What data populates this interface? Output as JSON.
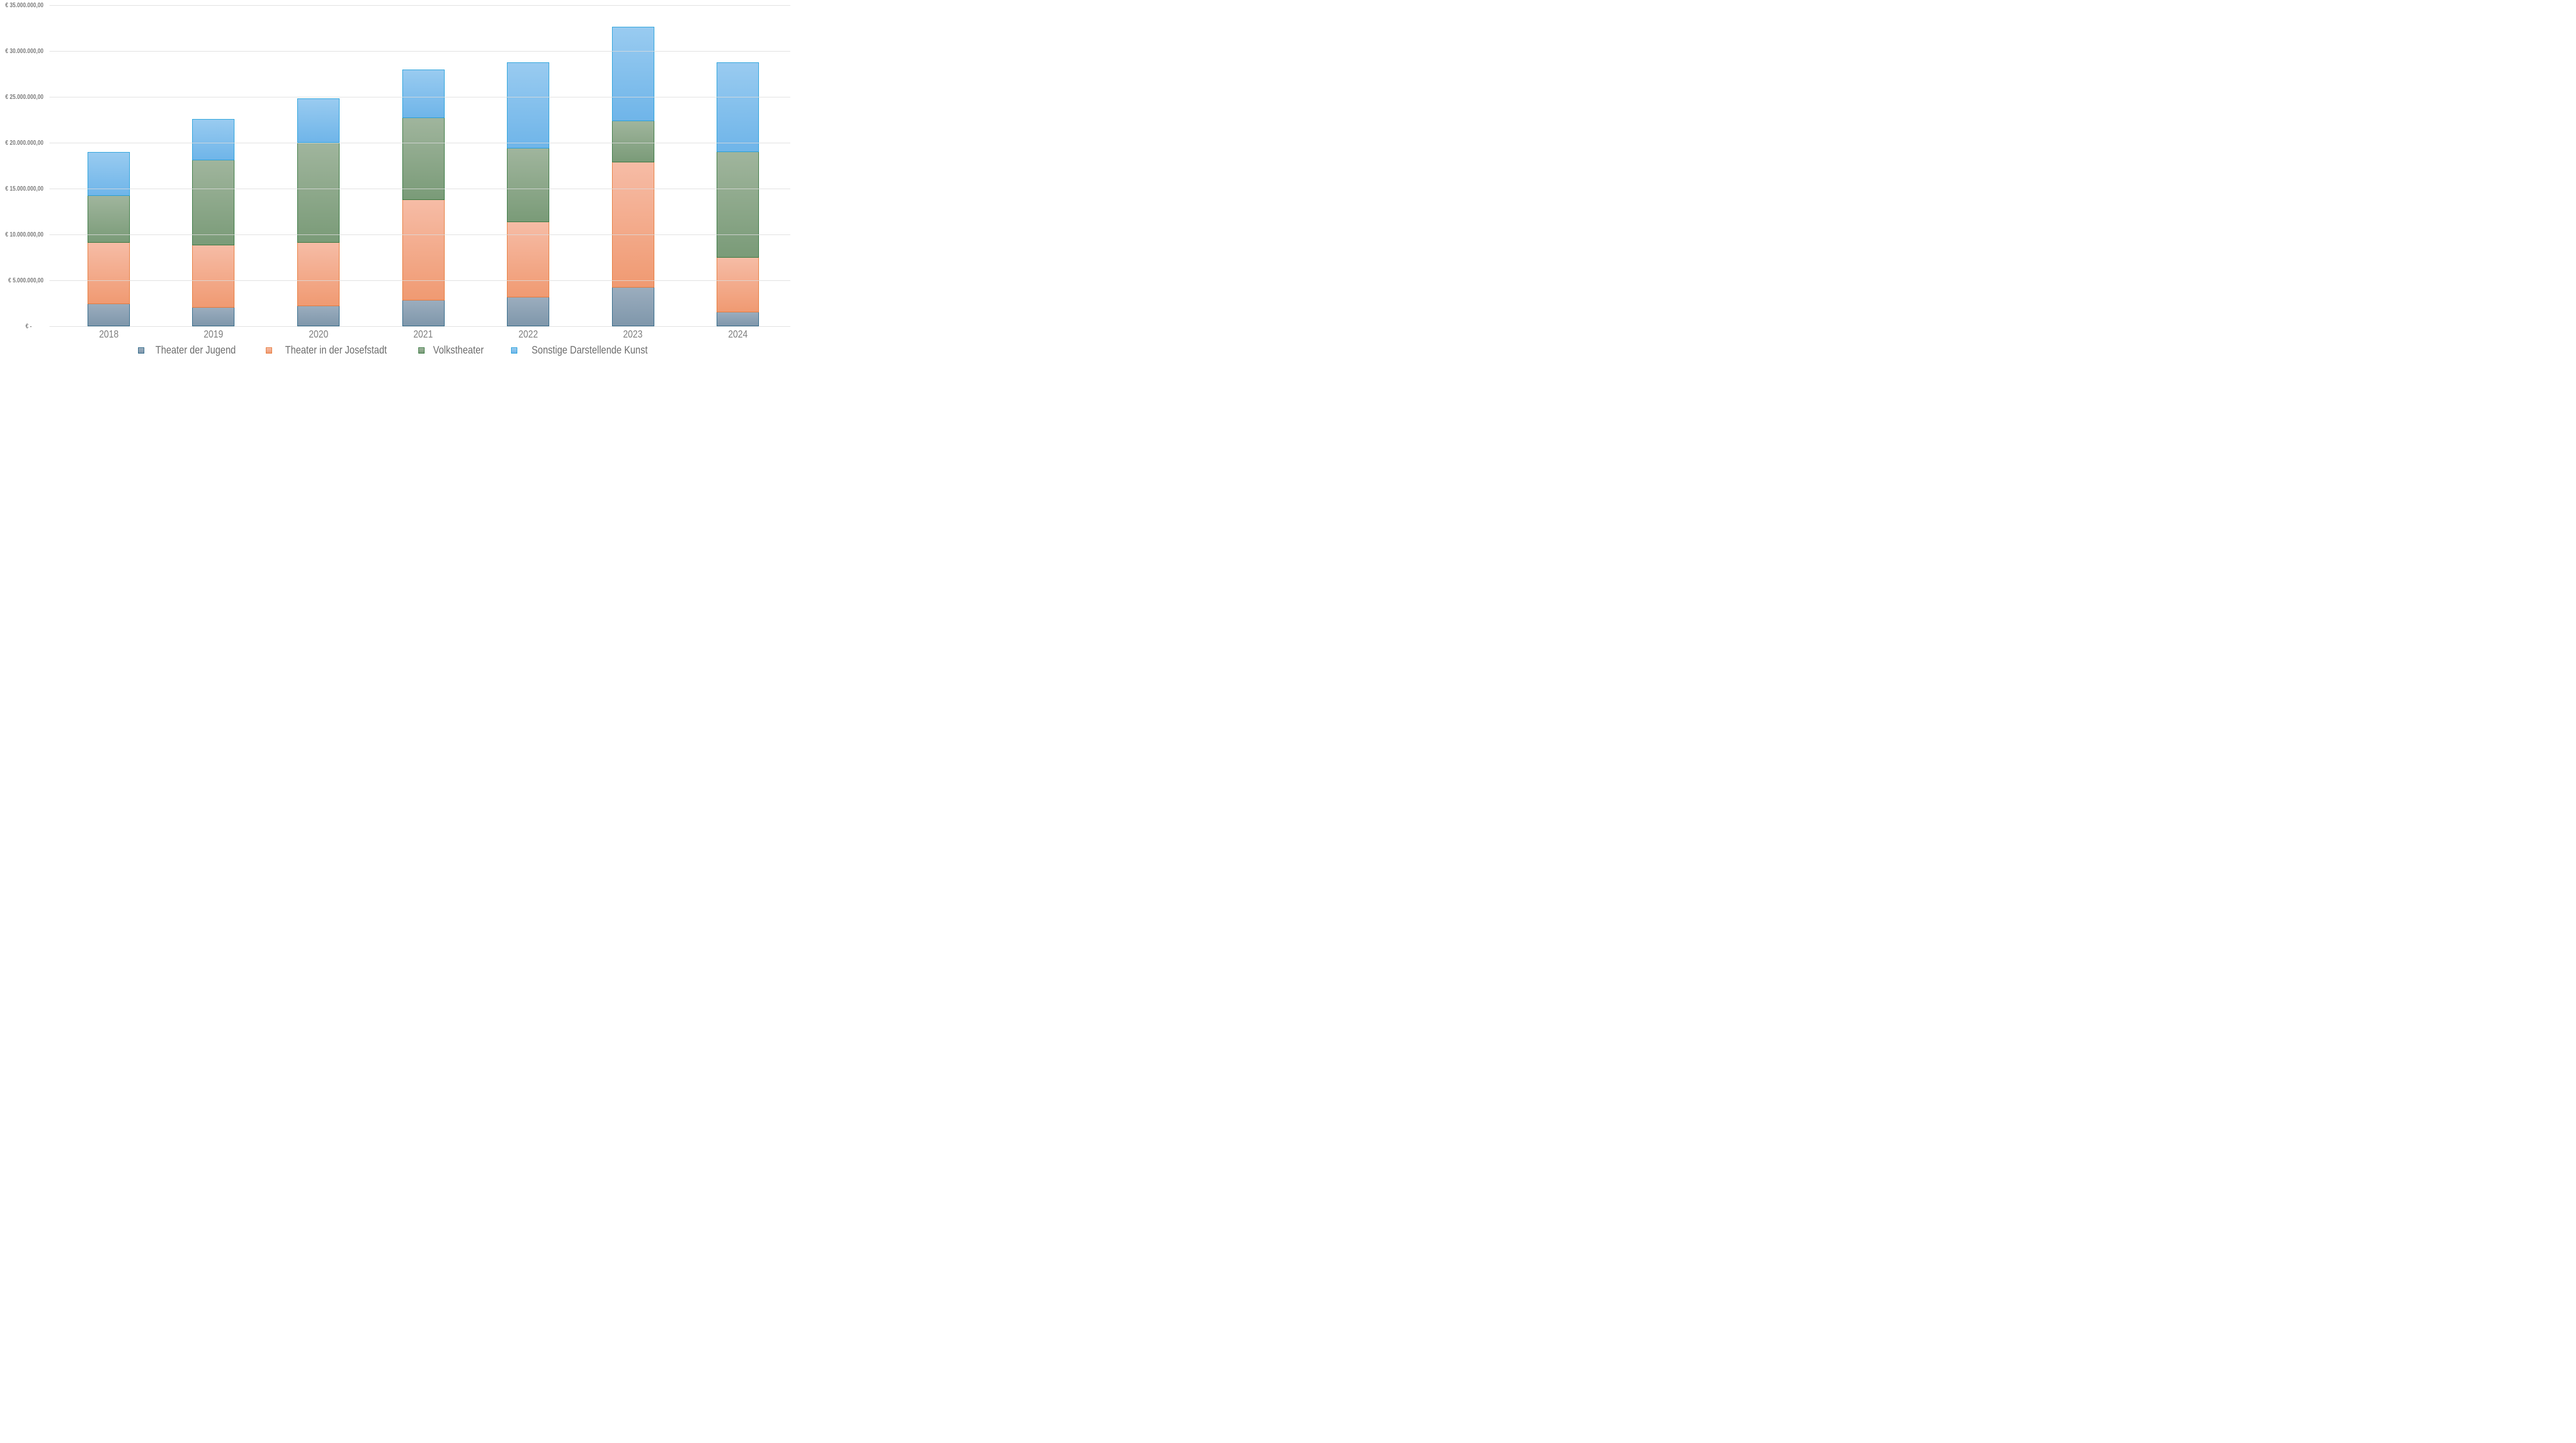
{
  "chart_data": {
    "type": "bar",
    "stacked": true,
    "title": "",
    "xlabel": "",
    "ylabel": "",
    "categories": [
      "2018",
      "2019",
      "2020",
      "2021",
      "2022",
      "2023",
      "2024"
    ],
    "series": [
      {
        "name": "Theater der Jugend",
        "values": [
          2400000,
          2000000,
          2200000,
          2800000,
          3150000,
          4200000,
          1500000
        ],
        "fill_top": "#9badbe",
        "fill_bottom": "#7f97ab",
        "border": "#205e80"
      },
      {
        "name": "Theater in der Josefstadt",
        "values": [
          6700000,
          6800000,
          6900000,
          10950000,
          8200000,
          13650000,
          6000000
        ],
        "fill_top": "#f6bca6",
        "fill_bottom": "#f09a72",
        "border": "#e4732e"
      },
      {
        "name": "Volkstheater",
        "values": [
          5100000,
          9300000,
          10900000,
          8950000,
          8050000,
          4500000,
          11500000
        ],
        "fill_top": "#a0b59d",
        "fill_bottom": "#7a9b78",
        "border": "#2a7034"
      },
      {
        "name": "Sonstige Darstellende Kunst",
        "values": [
          4800000,
          4500000,
          4850000,
          5300000,
          9350000,
          10300000,
          9750000
        ],
        "fill_top": "#99cbf0",
        "fill_bottom": "#6fb5e9",
        "border": "#189cd8"
      }
    ],
    "totals": [
      19000000,
      22600000,
      24850000,
      28000000,
      28750000,
      32650000,
      28750000
    ],
    "ylim": [
      0,
      35000000
    ],
    "y_tick_interval": 5000000,
    "y_tick_labels_bottom_up": [
      "€ -",
      "€ 5.000.000,00",
      "€ 10.000.000,00",
      "€ 15.000.000,00",
      "€ 20.000.000,00",
      "€ 25.000.000,00",
      "€ 30.000.000,00",
      "€ 35.000.000,00"
    ],
    "grid": true,
    "legend_position": "bottom",
    "gridline_color": "#dcdcdc",
    "axis_text_color": "#7f7f7f",
    "legend_text_color": "#6e6e6e"
  }
}
